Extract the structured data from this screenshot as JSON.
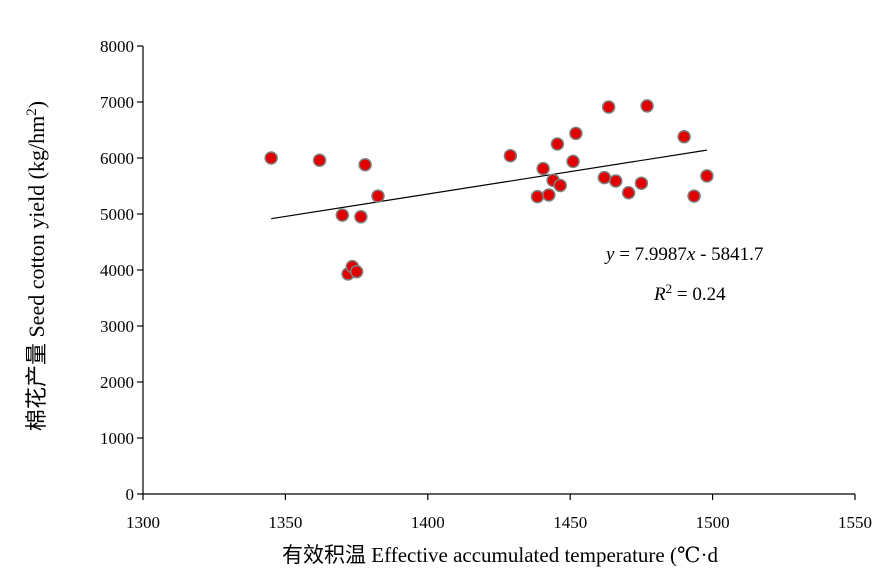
{
  "chart_data": {
    "type": "scatter",
    "xlabel": "有效积温 Effective accumulated temperature (℃·d",
    "ylabel_base": "棉花产量  Seed cotton yield (kg/hm",
    "ylabel_sup": "2",
    "ylabel_close": ")",
    "xlim": [
      1300,
      1550
    ],
    "ylim": [
      0,
      8000
    ],
    "xticks": [
      1300,
      1350,
      1400,
      1450,
      1500,
      1550
    ],
    "yticks": [
      0,
      1000,
      2000,
      3000,
      4000,
      5000,
      6000,
      7000,
      8000
    ],
    "grid": false,
    "points": [
      {
        "x": 1345,
        "y": 6000
      },
      {
        "x": 1362,
        "y": 5960
      },
      {
        "x": 1370,
        "y": 4980
      },
      {
        "x": 1372,
        "y": 3930
      },
      {
        "x": 1373.5,
        "y": 4060
      },
      {
        "x": 1375,
        "y": 3970
      },
      {
        "x": 1376.5,
        "y": 4950
      },
      {
        "x": 1378,
        "y": 5880
      },
      {
        "x": 1382.5,
        "y": 5320
      },
      {
        "x": 1429,
        "y": 6040
      },
      {
        "x": 1438.5,
        "y": 5310
      },
      {
        "x": 1440.5,
        "y": 5810
      },
      {
        "x": 1442.5,
        "y": 5340
      },
      {
        "x": 1444,
        "y": 5600
      },
      {
        "x": 1445.5,
        "y": 6250
      },
      {
        "x": 1446.5,
        "y": 5510
      },
      {
        "x": 1451,
        "y": 5940
      },
      {
        "x": 1452,
        "y": 6440
      },
      {
        "x": 1462,
        "y": 5650
      },
      {
        "x": 1463.5,
        "y": 6910
      },
      {
        "x": 1466,
        "y": 5590
      },
      {
        "x": 1470.5,
        "y": 5380
      },
      {
        "x": 1475,
        "y": 5550
      },
      {
        "x": 1477,
        "y": 6930
      },
      {
        "x": 1490,
        "y": 6380
      },
      {
        "x": 1493.5,
        "y": 5320
      },
      {
        "x": 1498,
        "y": 5680
      }
    ],
    "trendline": {
      "slope": 7.9987,
      "intercept": -5841.7,
      "x_range": [
        1345,
        1498
      ]
    },
    "equation": {
      "y_var": "y",
      "eq_part": " = 7.9987",
      "x_var": "x",
      "rest": " - 5841.7"
    },
    "r2": {
      "r": "R",
      "sup": "2",
      "rest": " = 0.24"
    },
    "colors": {
      "marker_fill": "#e00000",
      "marker_stroke": "#7f7f7f",
      "axis": "#000000",
      "trend": "#000000"
    }
  }
}
